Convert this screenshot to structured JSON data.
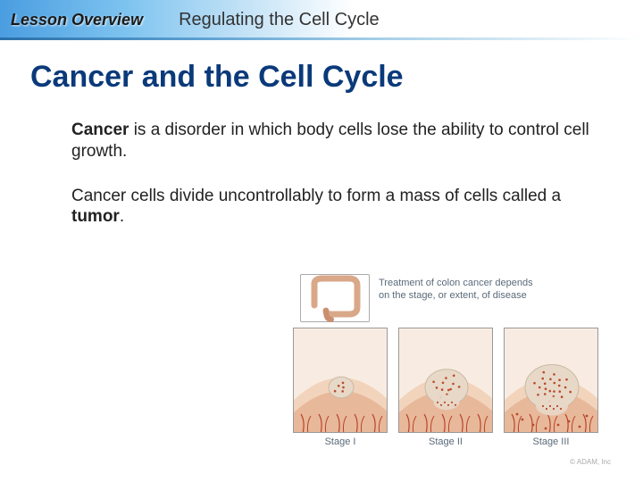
{
  "header": {
    "lesson_overview": "Lesson Overview",
    "subtitle": "Regulating the Cell Cycle"
  },
  "title": "Cancer and the Cell Cycle",
  "paragraphs": [
    {
      "pre": "",
      "bold": "Cancer",
      "post": " is a disorder in which body cells lose the ability to control cell growth."
    },
    {
      "pre": "Cancer cells divide uncontrollably to form a mass of cells called a ",
      "bold": "tumor",
      "post": "."
    }
  ],
  "figure": {
    "caption": "Treatment of colon cancer depends on the stage, or extent, of disease",
    "credit": "© ADAM, Inc",
    "colon_thumb": {
      "border_color": "#aaaaaa",
      "colon_color": "#d9a889",
      "rectum_color": "#c98f70"
    },
    "panel_style": {
      "wall_outer": "#e8b89a",
      "wall_inner": "#f2d4bc",
      "lumen": "#f8ece2",
      "vessels": "#b8442a",
      "tumor_fill": "#e8d8c8",
      "tumor_spots": "#b84a2a",
      "border": "#999999"
    },
    "panels": [
      {
        "label": "Stage I",
        "tumor_size": 14,
        "spread_inner": false,
        "spread_outer": false,
        "spot_count": 5
      },
      {
        "label": "Stage II",
        "tumor_size": 24,
        "spread_inner": true,
        "spread_outer": false,
        "spot_count": 12
      },
      {
        "label": "Stage III",
        "tumor_size": 30,
        "spread_inner": true,
        "spread_outer": true,
        "spot_count": 22
      }
    ]
  }
}
